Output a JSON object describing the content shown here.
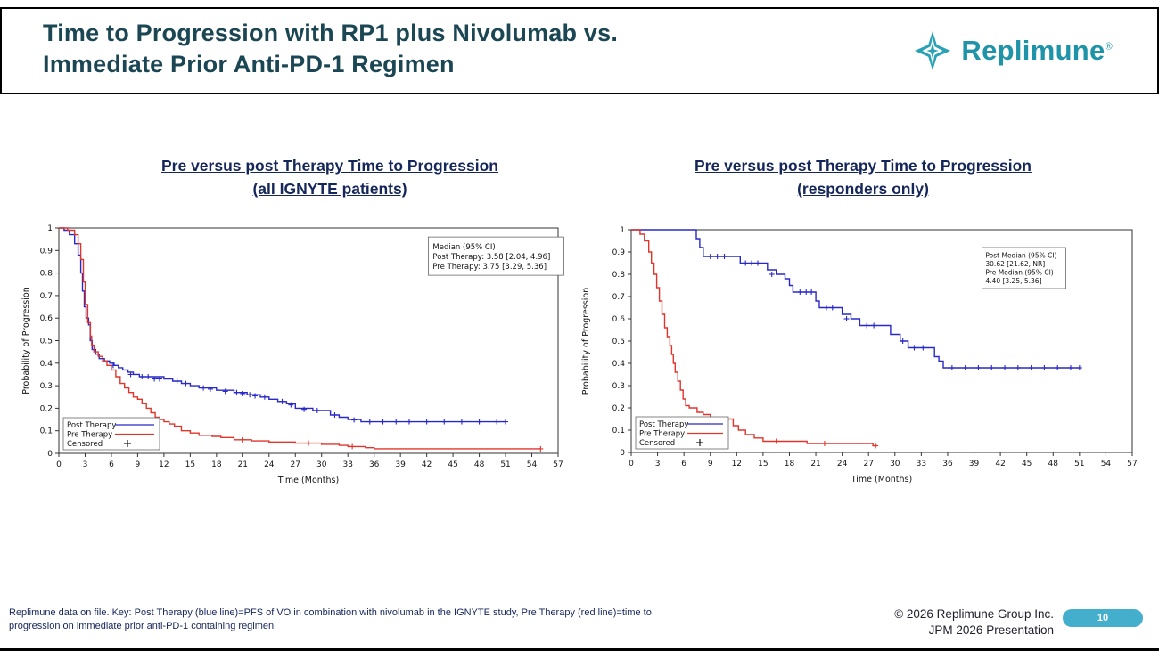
{
  "header": {
    "title_line1": "Time to Progression with RP1 plus Nivolumab vs.",
    "title_line2": "Immediate Prior Anti-PD-1 Regimen",
    "logo_text": "Replimune",
    "logo_reg": "®"
  },
  "colors": {
    "post_therapy": "#2929c8",
    "pre_therapy": "#e0352b",
    "brand_teal": "#1f93a8",
    "page_badge": "#44aecd",
    "header_title": "#1b4653",
    "chart_title": "#15265a"
  },
  "chart_data": [
    {
      "type": "line",
      "subtype": "kaplan-meier-step",
      "title_line1": "Pre versus post Therapy Time to Progression",
      "title_line2": "(all IGNYTE patients)",
      "xlabel": "Time (Months)",
      "ylabel": "Probability of Progression",
      "xlim": [
        0,
        57
      ],
      "ylim": [
        0,
        1
      ],
      "xticks": [
        "0",
        "3",
        "6",
        "9",
        "12",
        "15",
        "18",
        "21",
        "24",
        "27",
        "30",
        "33",
        "36",
        "39",
        "42",
        "45",
        "48",
        "51",
        "54",
        "57"
      ],
      "yticks": [
        "0",
        "0.1",
        "0.2",
        "0.3",
        "0.4",
        "0.5",
        "0.6",
        "0.7",
        "0.8",
        "0.9",
        "1"
      ],
      "grid": false,
      "legend_position": "bottom-left",
      "annotation": {
        "lines": [
          "Median (95% CI)",
          "Post Therapy: 3.58 [2.04, 4.96]",
          "Pre Therapy: 3.75 [3.29, 5.36]"
        ]
      },
      "legend": [
        {
          "label": "Post Therapy",
          "type": "line",
          "color": "#2929c8"
        },
        {
          "label": "Pre Therapy",
          "type": "line",
          "color": "#e0352b"
        },
        {
          "label": "Censored",
          "type": "marker",
          "marker": "+",
          "color": "#000000"
        }
      ],
      "series": [
        {
          "name": "Post Therapy",
          "color": "#2929c8",
          "steps": [
            [
              0,
              1
            ],
            [
              0.6,
              0.99
            ],
            [
              1.2,
              0.97
            ],
            [
              1.8,
              0.93
            ],
            [
              2.2,
              0.88
            ],
            [
              2.5,
              0.8
            ],
            [
              2.7,
              0.72
            ],
            [
              2.9,
              0.65
            ],
            [
              3.1,
              0.6
            ],
            [
              3.4,
              0.57
            ],
            [
              3.58,
              0.5
            ],
            [
              3.8,
              0.46
            ],
            [
              4.2,
              0.44
            ],
            [
              4.6,
              0.42
            ],
            [
              5.2,
              0.41
            ],
            [
              5.8,
              0.4
            ],
            [
              6.3,
              0.39
            ],
            [
              6.8,
              0.38
            ],
            [
              7.3,
              0.37
            ],
            [
              7.9,
              0.36
            ],
            [
              8.5,
              0.35
            ],
            [
              9.2,
              0.34
            ],
            [
              12,
              0.33
            ],
            [
              13,
              0.32
            ],
            [
              14,
              0.31
            ],
            [
              15,
              0.3
            ],
            [
              16,
              0.29
            ],
            [
              18,
              0.28
            ],
            [
              20,
              0.27
            ],
            [
              21.5,
              0.26
            ],
            [
              23,
              0.25
            ],
            [
              24,
              0.24
            ],
            [
              25,
              0.23
            ],
            [
              26,
              0.22
            ],
            [
              27,
              0.2
            ],
            [
              29,
              0.19
            ],
            [
              31,
              0.17
            ],
            [
              32,
              0.16
            ],
            [
              33,
              0.15
            ],
            [
              34.5,
              0.14
            ],
            [
              51,
              0.14
            ]
          ],
          "censored": [
            [
              6.2,
              0.39
            ],
            [
              8.2,
              0.35
            ],
            [
              9.5,
              0.34
            ],
            [
              10.2,
              0.34
            ],
            [
              10.9,
              0.33
            ],
            [
              11.5,
              0.33
            ],
            [
              13.5,
              0.32
            ],
            [
              14.5,
              0.31
            ],
            [
              16.5,
              0.29
            ],
            [
              17.3,
              0.285
            ],
            [
              19,
              0.275
            ],
            [
              20.3,
              0.27
            ],
            [
              21,
              0.265
            ],
            [
              21.8,
              0.26
            ],
            [
              22.4,
              0.255
            ],
            [
              23.5,
              0.25
            ],
            [
              25.5,
              0.23
            ],
            [
              26.5,
              0.215
            ],
            [
              28,
              0.195
            ],
            [
              29.5,
              0.19
            ],
            [
              31.5,
              0.17
            ],
            [
              33.7,
              0.148
            ],
            [
              35.5,
              0.14
            ],
            [
              37,
              0.14
            ],
            [
              38.5,
              0.14
            ],
            [
              40,
              0.14
            ],
            [
              42,
              0.14
            ],
            [
              44,
              0.14
            ],
            [
              46,
              0.14
            ],
            [
              48,
              0.14
            ],
            [
              50,
              0.14
            ],
            [
              51,
              0.14
            ]
          ]
        },
        {
          "name": "Pre Therapy",
          "color": "#e0352b",
          "steps": [
            [
              0,
              1
            ],
            [
              1,
              0.99
            ],
            [
              1.8,
              0.97
            ],
            [
              2.2,
              0.93
            ],
            [
              2.5,
              0.86
            ],
            [
              2.8,
              0.76
            ],
            [
              3,
              0.66
            ],
            [
              3.3,
              0.58
            ],
            [
              3.6,
              0.52
            ],
            [
              3.75,
              0.48
            ],
            [
              4,
              0.45
            ],
            [
              4.5,
              0.43
            ],
            [
              5,
              0.41
            ],
            [
              5.5,
              0.39
            ],
            [
              6,
              0.37
            ],
            [
              6.5,
              0.34
            ],
            [
              7,
              0.31
            ],
            [
              7.5,
              0.29
            ],
            [
              8,
              0.27
            ],
            [
              8.5,
              0.25
            ],
            [
              9,
              0.24
            ],
            [
              9.5,
              0.22
            ],
            [
              10,
              0.2
            ],
            [
              10.5,
              0.18
            ],
            [
              11,
              0.16
            ],
            [
              11.5,
              0.15
            ],
            [
              12,
              0.14
            ],
            [
              12.6,
              0.13
            ],
            [
              13.2,
              0.12
            ],
            [
              14,
              0.1
            ],
            [
              15,
              0.09
            ],
            [
              16,
              0.08
            ],
            [
              17.5,
              0.075
            ],
            [
              18.5,
              0.07
            ],
            [
              20,
              0.06
            ],
            [
              22,
              0.055
            ],
            [
              24,
              0.05
            ],
            [
              27,
              0.045
            ],
            [
              30,
              0.04
            ],
            [
              32,
              0.035
            ],
            [
              33,
              0.03
            ],
            [
              35,
              0.025
            ],
            [
              36,
              0.02
            ],
            [
              55,
              0.02
            ]
          ],
          "censored": [
            [
              21,
              0.06
            ],
            [
              28.5,
              0.045
            ],
            [
              33.5,
              0.03
            ],
            [
              55,
              0.02
            ]
          ]
        }
      ]
    },
    {
      "type": "line",
      "subtype": "kaplan-meier-step",
      "title_line1": "Pre versus post Therapy Time to Progression",
      "title_line2": "(responders only)",
      "xlabel": "Time (Months)",
      "ylabel": "Probability of Progression",
      "xlim": [
        0,
        57
      ],
      "ylim": [
        0,
        1
      ],
      "xticks": [
        "0",
        "3",
        "6",
        "9",
        "12",
        "15",
        "18",
        "21",
        "24",
        "27",
        "30",
        "33",
        "36",
        "39",
        "42",
        "45",
        "48",
        "51",
        "54",
        "57"
      ],
      "yticks": [
        "0",
        "0.1",
        "0.2",
        "0.3",
        "0.4",
        "0.5",
        "0.6",
        "0.7",
        "0.8",
        "0.9",
        "1"
      ],
      "grid": false,
      "legend_position": "bottom-left",
      "annotation": {
        "lines": [
          "Post Median (95% CI)",
          "30.62 [21.62, NR]",
          "Pre Median (95% CI)",
          "4.40 [3.25, 5.36]"
        ]
      },
      "legend": [
        {
          "label": "Post Therapy",
          "type": "line",
          "color": "#2929c8"
        },
        {
          "label": "Pre Therapy",
          "type": "line",
          "color": "#e0352b"
        },
        {
          "label": "Censored",
          "type": "marker",
          "marker": "+",
          "color": "#000000"
        }
      ],
      "series": [
        {
          "name": "Post Therapy",
          "color": "#2929c8",
          "steps": [
            [
              0,
              1
            ],
            [
              7,
              1
            ],
            [
              7.4,
              0.96
            ],
            [
              7.8,
              0.92
            ],
            [
              8.2,
              0.88
            ],
            [
              12,
              0.88
            ],
            [
              12.4,
              0.85
            ],
            [
              15,
              0.85
            ],
            [
              15.5,
              0.82
            ],
            [
              16.5,
              0.8
            ],
            [
              17.5,
              0.78
            ],
            [
              18,
              0.75
            ],
            [
              18.4,
              0.72
            ],
            [
              20.6,
              0.72
            ],
            [
              21,
              0.68
            ],
            [
              21.4,
              0.65
            ],
            [
              23.6,
              0.65
            ],
            [
              24,
              0.62
            ],
            [
              25,
              0.6
            ],
            [
              26,
              0.57
            ],
            [
              29,
              0.57
            ],
            [
              29.5,
              0.53
            ],
            [
              30.6,
              0.5
            ],
            [
              31.5,
              0.47
            ],
            [
              34,
              0.47
            ],
            [
              34.5,
              0.43
            ],
            [
              35,
              0.41
            ],
            [
              35.5,
              0.38
            ],
            [
              51,
              0.38
            ]
          ],
          "censored": [
            [
              9,
              0.88
            ],
            [
              9.8,
              0.88
            ],
            [
              10.6,
              0.88
            ],
            [
              13,
              0.85
            ],
            [
              13.7,
              0.85
            ],
            [
              14.4,
              0.85
            ],
            [
              16,
              0.8
            ],
            [
              19.2,
              0.72
            ],
            [
              19.9,
              0.72
            ],
            [
              20.5,
              0.72
            ],
            [
              22.2,
              0.65
            ],
            [
              22.9,
              0.65
            ],
            [
              24.5,
              0.6
            ],
            [
              26.8,
              0.57
            ],
            [
              27.6,
              0.57
            ],
            [
              30.9,
              0.5
            ],
            [
              32.2,
              0.47
            ],
            [
              33.2,
              0.47
            ],
            [
              36.5,
              0.38
            ],
            [
              38,
              0.38
            ],
            [
              39.5,
              0.38
            ],
            [
              41,
              0.38
            ],
            [
              42.5,
              0.38
            ],
            [
              44,
              0.38
            ],
            [
              45.5,
              0.38
            ],
            [
              47,
              0.38
            ],
            [
              48.5,
              0.38
            ],
            [
              50,
              0.38
            ],
            [
              51,
              0.38
            ]
          ]
        },
        {
          "name": "Pre Therapy",
          "color": "#e0352b",
          "steps": [
            [
              0,
              1
            ],
            [
              1,
              0.98
            ],
            [
              1.5,
              0.95
            ],
            [
              2,
              0.9
            ],
            [
              2.3,
              0.85
            ],
            [
              2.6,
              0.8
            ],
            [
              2.9,
              0.74
            ],
            [
              3.2,
              0.68
            ],
            [
              3.5,
              0.62
            ],
            [
              3.8,
              0.56
            ],
            [
              4.1,
              0.52
            ],
            [
              4.4,
              0.48
            ],
            [
              4.6,
              0.44
            ],
            [
              4.8,
              0.4
            ],
            [
              5,
              0.36
            ],
            [
              5.3,
              0.32
            ],
            [
              5.6,
              0.28
            ],
            [
              5.9,
              0.24
            ],
            [
              6.2,
              0.21
            ],
            [
              6.6,
              0.2
            ],
            [
              7.5,
              0.18
            ],
            [
              8.2,
              0.17
            ],
            [
              9,
              0.15
            ],
            [
              11.2,
              0.15
            ],
            [
              11.6,
              0.12
            ],
            [
              12.2,
              0.1
            ],
            [
              13,
              0.08
            ],
            [
              14,
              0.065
            ],
            [
              15,
              0.05
            ],
            [
              18,
              0.05
            ],
            [
              20,
              0.04
            ],
            [
              27,
              0.04
            ],
            [
              27.5,
              0.03
            ],
            [
              28,
              0.03
            ]
          ],
          "censored": [
            [
              10,
              0.15
            ],
            [
              16.5,
              0.05
            ],
            [
              22,
              0.04
            ],
            [
              27.8,
              0.03
            ]
          ]
        }
      ]
    }
  ],
  "footer": {
    "footnote_line1": "Replimune data on file. Key: Post Therapy (blue line)=PFS of VO in combination with nivolumab in the IGNYTE study, Pre Therapy (red line)=time to",
    "footnote_line2": "progression on immediate prior anti-PD-1 containing regimen",
    "copyright_line1": "© 2026 Replimune Group Inc.",
    "copyright_line2": "JPM 2026 Presentation",
    "page_number": "10"
  }
}
